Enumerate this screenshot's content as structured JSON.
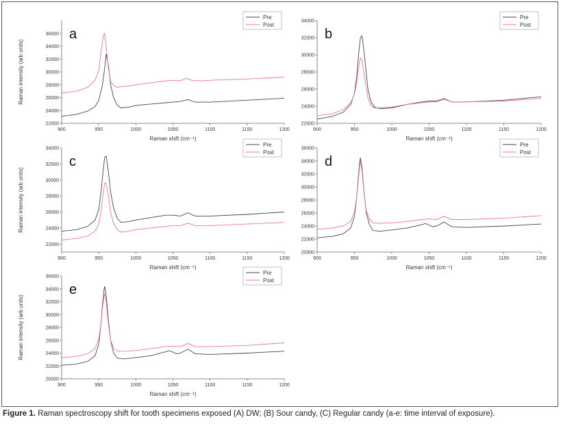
{
  "caption": {
    "label": "Figure 1.",
    "text": " Raman spectroscopy shift for tooth specimens exposed (A) DW; (B) Sour candy, (C) Regular candy (a-e: time interval of exposure)."
  },
  "colors": {
    "pre": "#444444",
    "post": "#ee7788",
    "axis": "#666666",
    "frame": "#555555"
  },
  "chart_data": [
    {
      "type": "line",
      "panel": "a",
      "xlabel": "Raman shift (cm⁻¹)",
      "ylabel": "Raman intensity (arb units)",
      "xlim": [
        900,
        1200
      ],
      "ylim": [
        22000,
        38000
      ],
      "xticks": [
        900,
        950,
        1000,
        1050,
        1100,
        1150,
        1200
      ],
      "yticks": [
        22000,
        24000,
        26000,
        28000,
        30000,
        32000,
        34000,
        36000
      ],
      "legend": "top-right",
      "series": [
        {
          "name": "Pre",
          "x": [
            900,
            920,
            935,
            945,
            950,
            955,
            958,
            960,
            963,
            966,
            970,
            975,
            980,
            990,
            1000,
            1020,
            1040,
            1050,
            1060,
            1070,
            1080,
            1100,
            1150,
            1200
          ],
          "y": [
            23100,
            23400,
            23900,
            24600,
            25600,
            28000,
            30600,
            32800,
            31000,
            28000,
            26000,
            24800,
            24400,
            24500,
            24800,
            25000,
            25200,
            25300,
            25400,
            25700,
            25300,
            25300,
            25600,
            25900
          ]
        },
        {
          "name": "Post",
          "x": [
            900,
            920,
            935,
            945,
            950,
            953,
            956,
            958,
            960,
            963,
            966,
            970,
            975,
            980,
            990,
            1000,
            1020,
            1040,
            1050,
            1060,
            1068,
            1075,
            1090,
            1100,
            1150,
            1200
          ],
          "y": [
            26700,
            27000,
            27600,
            28700,
            30200,
            33000,
            35500,
            36000,
            34000,
            30500,
            28500,
            27900,
            27600,
            27700,
            27800,
            28000,
            28300,
            28600,
            28700,
            28600,
            29000,
            28700,
            28600,
            28700,
            28900,
            29200
          ]
        }
      ]
    },
    {
      "type": "line",
      "panel": "b",
      "xlabel": "Raman shift (cm⁻¹)",
      "ylabel": "",
      "xlim": [
        900,
        1200
      ],
      "ylim": [
        22000,
        34000
      ],
      "xticks": [
        900,
        950,
        1000,
        1050,
        1100,
        1150,
        1200
      ],
      "yticks": [
        22000,
        24000,
        26000,
        28000,
        30000,
        32000,
        34000
      ],
      "legend": "top-right",
      "series": [
        {
          "name": "Pre",
          "x": [
            900,
            920,
            935,
            945,
            950,
            953,
            956,
            958,
            960,
            962,
            965,
            968,
            972,
            977,
            985,
            1000,
            1020,
            1040,
            1050,
            1060,
            1070,
            1080,
            1100,
            1150,
            1200
          ],
          "y": [
            22500,
            22800,
            23300,
            24200,
            25500,
            27500,
            30500,
            32000,
            32200,
            31000,
            28500,
            26000,
            24500,
            23900,
            23700,
            23800,
            24200,
            24500,
            24600,
            24600,
            24900,
            24500,
            24500,
            24700,
            25100
          ]
        },
        {
          "name": "Post",
          "x": [
            900,
            920,
            935,
            945,
            950,
            953,
            956,
            958,
            960,
            962,
            965,
            968,
            972,
            977,
            985,
            1000,
            1020,
            1040,
            1050,
            1060,
            1070,
            1080,
            1100,
            1150,
            1200
          ],
          "y": [
            22900,
            23100,
            23600,
            24400,
            25400,
            26800,
            28800,
            29600,
            29400,
            28300,
            26500,
            25000,
            24100,
            23800,
            23800,
            23900,
            24200,
            24400,
            24500,
            24500,
            24800,
            24500,
            24500,
            24600,
            24900
          ]
        }
      ]
    },
    {
      "type": "line",
      "panel": "c",
      "xlabel": "Raman shift (cm⁻¹)",
      "ylabel": "Raman intensity (arb units)",
      "xlim": [
        900,
        1200
      ],
      "ylim": [
        21000,
        34000
      ],
      "xticks": [
        900,
        950,
        1000,
        1050,
        1100,
        1150,
        1200
      ],
      "yticks": [
        22000,
        24000,
        26000,
        28000,
        30000,
        32000,
        34000
      ],
      "legend": "top-right",
      "series": [
        {
          "name": "Pre",
          "x": [
            900,
            920,
            935,
            945,
            950,
            953,
            956,
            958,
            960,
            963,
            966,
            970,
            975,
            980,
            990,
            1000,
            1020,
            1040,
            1050,
            1060,
            1070,
            1080,
            1100,
            1150,
            1200
          ],
          "y": [
            23600,
            23800,
            24200,
            25000,
            26300,
            28500,
            31200,
            32800,
            33000,
            31000,
            28500,
            26500,
            25200,
            24700,
            24800,
            25000,
            25300,
            25600,
            25600,
            25500,
            25900,
            25500,
            25500,
            25700,
            26000
          ]
        },
        {
          "name": "Post",
          "x": [
            900,
            920,
            935,
            945,
            950,
            953,
            956,
            958,
            960,
            963,
            966,
            970,
            975,
            980,
            990,
            1000,
            1020,
            1040,
            1050,
            1060,
            1070,
            1080,
            1100,
            1150,
            1200
          ],
          "y": [
            22500,
            22700,
            23000,
            23600,
            24500,
            26000,
            28300,
            29600,
            29600,
            28000,
            26000,
            24600,
            23800,
            23500,
            23600,
            23800,
            24000,
            24200,
            24300,
            24300,
            24600,
            24300,
            24300,
            24500,
            24700
          ]
        }
      ]
    },
    {
      "type": "line",
      "panel": "d",
      "xlabel": "Raman shift (cm⁻¹)",
      "ylabel": "",
      "xlim": [
        900,
        1200
      ],
      "ylim": [
        20000,
        36000
      ],
      "xticks": [
        900,
        950,
        1000,
        1050,
        1100,
        1150,
        1200
      ],
      "yticks": [
        20000,
        22000,
        24000,
        26000,
        28000,
        30000,
        32000,
        34000,
        36000
      ],
      "legend": "top-right",
      "series": [
        {
          "name": "Pre",
          "x": [
            900,
            920,
            935,
            945,
            950,
            953,
            955,
            957,
            958,
            960,
            963,
            966,
            970,
            975,
            985,
            1000,
            1020,
            1040,
            1045,
            1055,
            1060,
            1070,
            1080,
            1100,
            1150,
            1200
          ],
          "y": [
            22200,
            22400,
            22800,
            23700,
            25500,
            28500,
            31500,
            33800,
            34500,
            33000,
            29000,
            26000,
            24200,
            23300,
            23200,
            23400,
            23700,
            24200,
            24400,
            23900,
            24000,
            24600,
            23900,
            23800,
            24000,
            24300
          ]
        },
        {
          "name": "Post",
          "x": [
            900,
            920,
            935,
            945,
            950,
            953,
            955,
            957,
            958,
            960,
            963,
            966,
            970,
            975,
            985,
            1000,
            1020,
            1040,
            1050,
            1060,
            1070,
            1080,
            1100,
            1150,
            1200
          ],
          "y": [
            23500,
            23700,
            24000,
            24700,
            26200,
            28500,
            31000,
            33200,
            34000,
            32500,
            28800,
            26300,
            25100,
            24500,
            24400,
            24500,
            24700,
            25000,
            25100,
            25000,
            25500,
            25000,
            25000,
            25200,
            25600
          ]
        }
      ]
    },
    {
      "type": "line",
      "panel": "e",
      "xlabel": "Raman shift (cm⁻¹)",
      "ylabel": "Raman intensity (arb units)",
      "xlim": [
        900,
        1200
      ],
      "ylim": [
        20000,
        36000
      ],
      "xticks": [
        900,
        950,
        1000,
        1050,
        1100,
        1150,
        1200
      ],
      "yticks": [
        20000,
        22000,
        24000,
        26000,
        28000,
        30000,
        32000,
        34000,
        36000
      ],
      "legend": "top-right",
      "series": [
        {
          "name": "Pre",
          "x": [
            900,
            920,
            935,
            945,
            950,
            953,
            955,
            957,
            958,
            960,
            963,
            966,
            970,
            975,
            985,
            1000,
            1020,
            1040,
            1045,
            1055,
            1060,
            1070,
            1080,
            1100,
            1150,
            1200
          ],
          "y": [
            22100,
            22300,
            22700,
            23600,
            25400,
            28500,
            31500,
            33800,
            34400,
            33000,
            29000,
            26000,
            24000,
            23200,
            23100,
            23300,
            23600,
            24200,
            24400,
            23900,
            24000,
            24600,
            23900,
            23800,
            24000,
            24300
          ]
        },
        {
          "name": "Post",
          "x": [
            900,
            920,
            935,
            945,
            950,
            953,
            955,
            957,
            958,
            960,
            963,
            966,
            970,
            975,
            985,
            1000,
            1020,
            1040,
            1050,
            1060,
            1070,
            1080,
            1100,
            1150,
            1200
          ],
          "y": [
            23300,
            23500,
            23900,
            24700,
            26200,
            28500,
            31000,
            32800,
            33300,
            32000,
            28500,
            26000,
            24800,
            24300,
            24300,
            24400,
            24700,
            25000,
            25100,
            25000,
            25500,
            25000,
            25000,
            25200,
            25600
          ]
        }
      ]
    }
  ]
}
